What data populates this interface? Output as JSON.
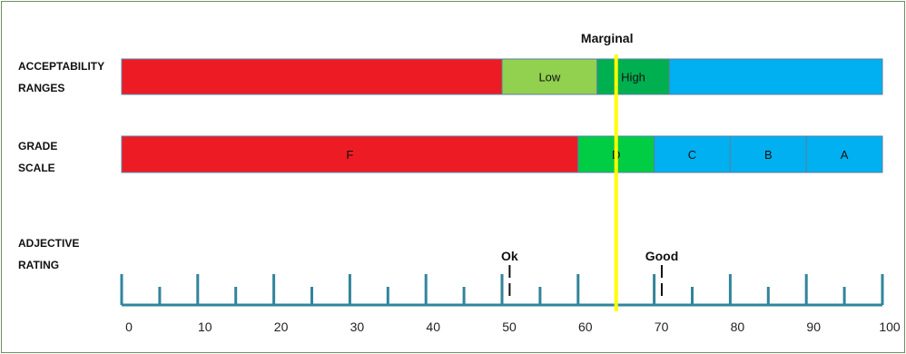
{
  "row_labels": {
    "acceptability": [
      "ACCEPTABILITY",
      "RANGES"
    ],
    "grade": [
      "GRADE",
      "SCALE"
    ],
    "adjective": [
      "ADJECTIVE",
      "RATING"
    ]
  },
  "marker": {
    "label": "Marginal",
    "value": 65,
    "color": "#ffff00"
  },
  "acceptability_ranges": [
    {
      "label": "",
      "from": 0,
      "to": 50,
      "color": "#ed1c24"
    },
    {
      "label": "Low",
      "from": 50,
      "to": 62.5,
      "color": "#92d050"
    },
    {
      "label": "High",
      "from": 62.5,
      "to": 72,
      "color": "#00b050"
    },
    {
      "label": "",
      "from": 72,
      "to": 100,
      "color": "#00b0f0"
    }
  ],
  "grade_scale": [
    {
      "label": "F",
      "from": 0,
      "to": 60,
      "color": "#ed1c24"
    },
    {
      "label": "D",
      "from": 60,
      "to": 70,
      "color": "#00cc44"
    },
    {
      "label": "C",
      "from": 70,
      "to": 80,
      "color": "#00b0f0"
    },
    {
      "label": "B",
      "from": 80,
      "to": 90,
      "color": "#00b0f0"
    },
    {
      "label": "A",
      "from": 90,
      "to": 100,
      "color": "#00b0f0"
    }
  ],
  "adjective_markers": [
    {
      "label": "Ok",
      "value": 51
    },
    {
      "label": "Good",
      "value": 71
    }
  ],
  "axis": {
    "min": 0,
    "max": 100,
    "major_step": 10,
    "minor_step": 5,
    "tick_labels": [
      "0",
      "10",
      "20",
      "30",
      "40",
      "50",
      "60",
      "70",
      "80",
      "90",
      "100"
    ],
    "color": "#31849b"
  }
}
